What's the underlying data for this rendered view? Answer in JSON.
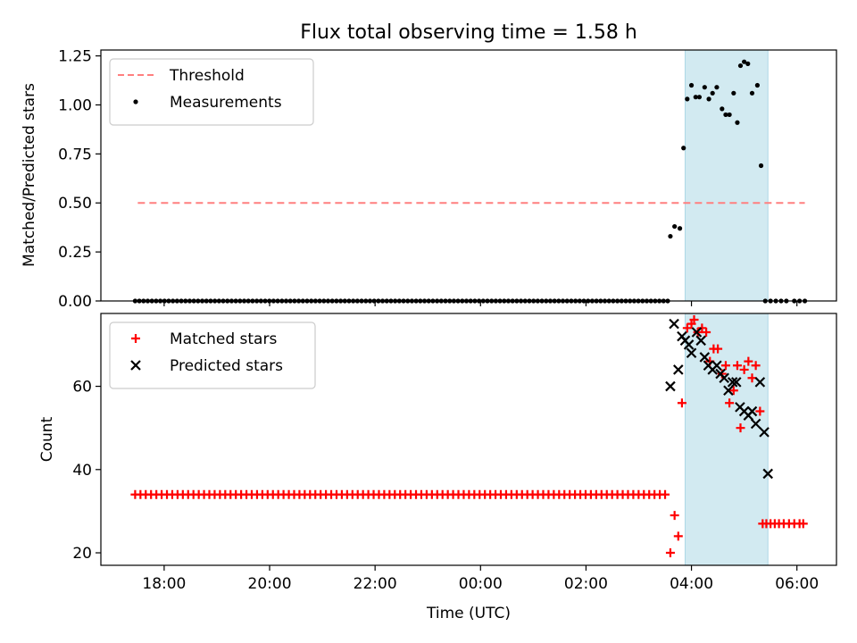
{
  "chart_data": {
    "title": "Flux total observing time = 1.58 h",
    "xlabel": "Time (UTC)",
    "x_unit": "hours since 00:00 UTC",
    "xlim": [
      -7.2,
      6.75
    ],
    "x_ticks": [
      {
        "value": -6,
        "label": "18:00"
      },
      {
        "value": -4,
        "label": "20:00"
      },
      {
        "value": -2,
        "label": "22:00"
      },
      {
        "value": 0,
        "label": "00:00"
      },
      {
        "value": 2,
        "label": "02:00"
      },
      {
        "value": 4,
        "label": "04:00"
      },
      {
        "value": 6,
        "label": "06:00"
      }
    ],
    "shaded_interval": {
      "x_start": 3.88,
      "x_end": 5.45,
      "color": "#add8e6"
    },
    "panels": [
      {
        "id": "ratio",
        "type": "scatter",
        "ylabel": "Matched/Predicted stars",
        "ylim": [
          0,
          1.28
        ],
        "y_ticks": [
          {
            "value": 0.0,
            "label": "0.00"
          },
          {
            "value": 0.25,
            "label": "0.25"
          },
          {
            "value": 0.5,
            "label": "0.50"
          },
          {
            "value": 0.75,
            "label": "0.75"
          },
          {
            "value": 1.0,
            "label": "1.00"
          },
          {
            "value": 1.25,
            "label": "1.25"
          }
        ],
        "legend": {
          "location": "top-left",
          "entries": [
            {
              "label": "Threshold",
              "marker": "dashed-line",
              "color": "#ff7f7f"
            },
            {
              "label": "Measurements",
              "marker": "dot",
              "color": "#000000"
            }
          ]
        },
        "threshold": {
          "name": "Threshold",
          "y": 0.5,
          "x_start": -6.5,
          "x_end": 6.15,
          "color": "#ff7f7f"
        },
        "series": [
          {
            "name": "Measurements",
            "marker": "dot",
            "color": "#000000",
            "x": [
              3.6,
              3.68,
              3.78,
              3.85,
              3.92,
              4.0,
              4.08,
              4.15,
              4.25,
              4.33,
              4.4,
              4.48,
              4.58,
              4.65,
              4.72,
              4.8,
              4.87,
              4.93,
              5.0,
              5.07,
              5.15,
              5.25,
              5.32,
              5.4
            ],
            "y": [
              0.33,
              0.38,
              0.37,
              0.78,
              1.03,
              1.1,
              1.04,
              1.04,
              1.09,
              1.03,
              1.06,
              1.09,
              0.98,
              0.95,
              0.95,
              1.06,
              0.91,
              1.2,
              1.22,
              1.21,
              1.06,
              1.1,
              0.69,
              0.0
            ]
          },
          {
            "name": "Measurements (zero-valued run)",
            "marker": "dot",
            "color": "#000000",
            "x_range": [
              -6.55,
              3.55
            ],
            "y_constant": 0.0,
            "count": 128
          },
          {
            "name": "Measurements (zero-valued tail)",
            "marker": "dot",
            "color": "#000000",
            "x": [
              5.5,
              5.6,
              5.7,
              5.8,
              5.95,
              6.05,
              6.15
            ],
            "y": [
              0,
              0,
              0,
              0,
              0,
              0,
              0
            ]
          }
        ]
      },
      {
        "id": "count",
        "type": "scatter",
        "ylabel": "Count",
        "ylim": [
          17,
          77.5
        ],
        "y_ticks": [
          {
            "value": 20,
            "label": "20"
          },
          {
            "value": 40,
            "label": "40"
          },
          {
            "value": 60,
            "label": "60"
          }
        ],
        "legend": {
          "location": "top-left",
          "entries": [
            {
              "label": "Matched stars",
              "marker": "plus",
              "color": "#ff0000"
            },
            {
              "label": "Predicted stars",
              "marker": "x",
              "color": "#000000"
            }
          ]
        },
        "series": [
          {
            "name": "Matched stars",
            "marker": "plus",
            "color": "#ff0000",
            "x": [
              3.6,
              3.68,
              3.75,
              3.82,
              3.92,
              4.0,
              4.05,
              4.12,
              4.2,
              4.28,
              4.35,
              4.42,
              4.5,
              4.58,
              4.65,
              4.72,
              4.8,
              4.87,
              4.93,
              5.0,
              5.08,
              5.15,
              5.22,
              5.3,
              5.35
            ],
            "y": [
              20,
              29,
              24,
              56,
              74,
              75,
              76,
              73,
              74,
              73,
              66,
              69,
              69,
              63,
              65,
              56,
              59,
              65,
              50,
              64,
              66,
              62,
              65,
              54,
              27
            ]
          },
          {
            "name": "Matched stars (constant run)",
            "marker": "plus",
            "color": "#ff0000",
            "x_range": [
              -6.55,
              3.5
            ],
            "y_constant": 34,
            "count": 101
          },
          {
            "name": "Matched stars (tail)",
            "marker": "plus",
            "color": "#ff0000",
            "x": [
              5.42,
              5.5,
              5.58,
              5.66,
              5.75,
              5.85,
              5.95,
              6.05,
              6.12
            ],
            "y": [
              27,
              27,
              27,
              27,
              27,
              27,
              27,
              27,
              27
            ]
          },
          {
            "name": "Predicted stars",
            "marker": "x",
            "color": "#000000",
            "x": [
              3.6,
              3.67,
              3.75,
              3.82,
              3.88,
              3.95,
              4.0,
              4.1,
              4.18,
              4.25,
              4.32,
              4.4,
              4.48,
              4.55,
              4.62,
              4.7,
              4.78,
              4.85,
              4.92,
              5.0,
              5.08,
              5.15,
              5.22,
              5.3,
              5.38,
              5.45
            ],
            "y": [
              60,
              75,
              64,
              72,
              71,
              70,
              68,
              73,
              71,
              67,
              65,
              64,
              65,
              63,
              62,
              59,
              61,
              61,
              55,
              54,
              53,
              54,
              51,
              61,
              49,
              39
            ]
          }
        ]
      }
    ]
  }
}
